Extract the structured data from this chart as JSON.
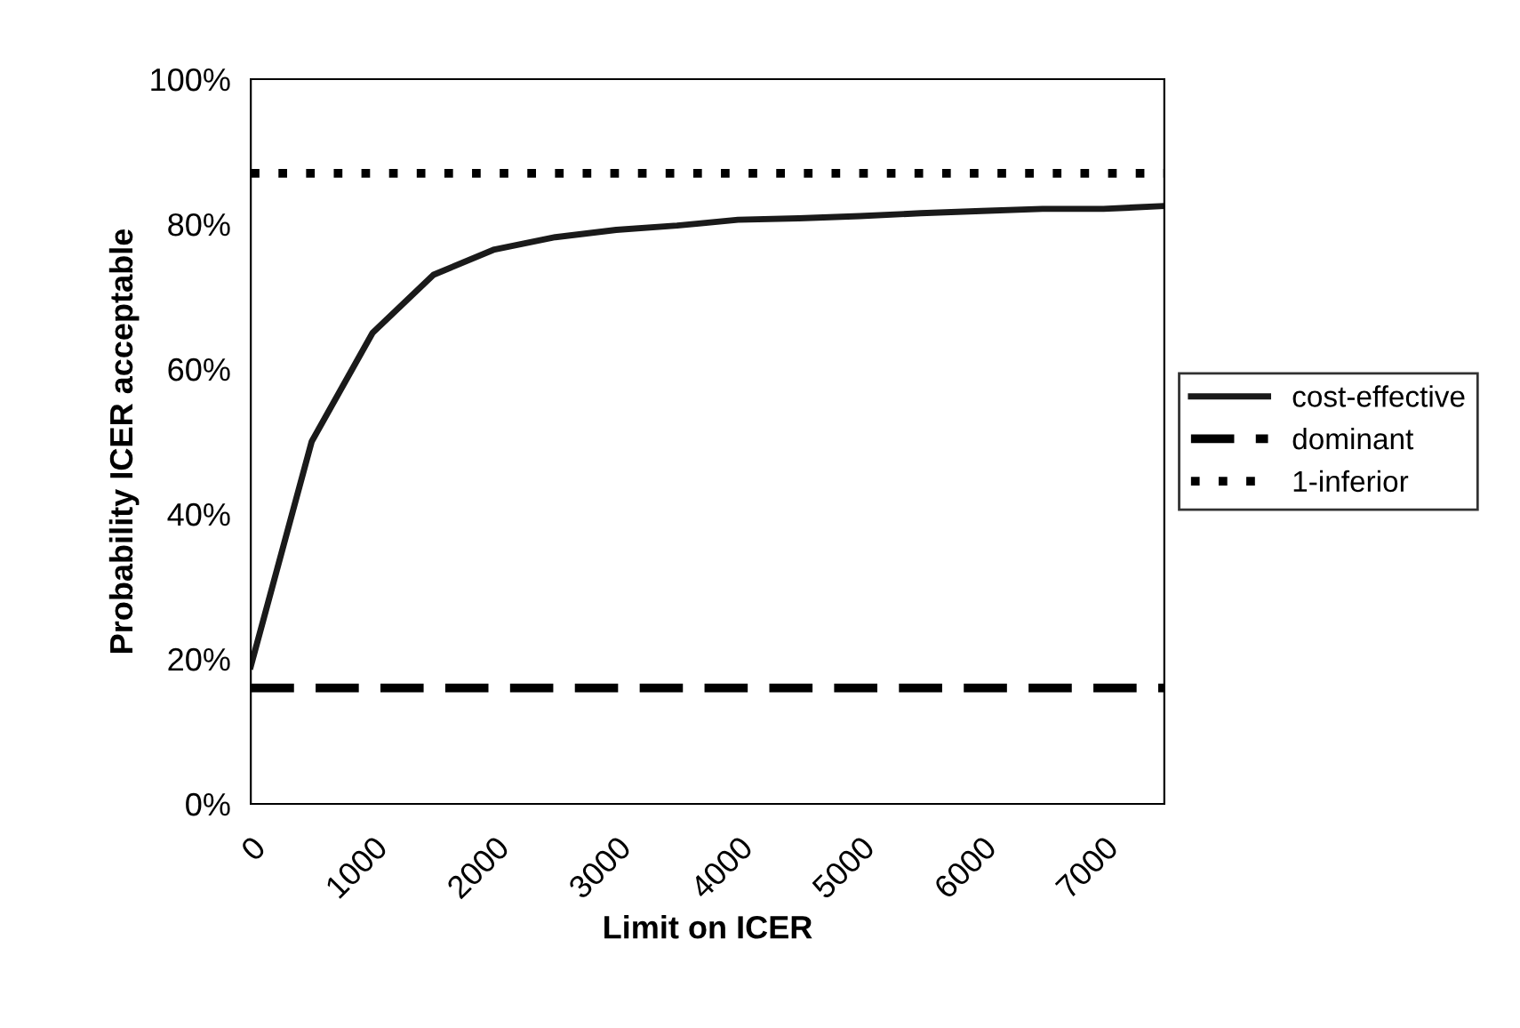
{
  "chart_data": {
    "type": "line",
    "xlabel": "Limit on ICER",
    "ylabel": "Probability ICER acceptable",
    "categories": [
      "0",
      null,
      "1000",
      null,
      "2000",
      null,
      "3000",
      null,
      "4000",
      null,
      "5000",
      null,
      "6000",
      null,
      "7000",
      null
    ],
    "series": [
      {
        "name": "cost-effective",
        "color": "#1a1a1a",
        "line_style": "solid",
        "values": [
          19,
          50,
          65,
          73,
          76.5,
          78.2,
          79.2,
          79.8,
          80.6,
          80.8,
          81.1,
          81.5,
          81.8,
          82.1,
          82.1,
          82.5
        ]
      },
      {
        "name": "dominant",
        "color": "#000000",
        "line_style": "dashed",
        "values": [
          16,
          16,
          16,
          16,
          16,
          16,
          16,
          16,
          16,
          16,
          16,
          16,
          16,
          16,
          16,
          16
        ]
      },
      {
        "name": "1-inferior",
        "color": "#000000",
        "line_style": "dotted",
        "values": [
          87,
          87,
          87,
          87,
          87,
          87,
          87,
          87,
          87,
          87,
          87,
          87,
          87,
          87,
          87,
          87
        ]
      }
    ],
    "ylim": [
      0,
      100
    ],
    "yticks": [
      {
        "value": 0,
        "label": "0%"
      },
      {
        "value": 20,
        "label": "20%"
      },
      {
        "value": 40,
        "label": "40%"
      },
      {
        "value": 60,
        "label": "60%"
      },
      {
        "value": 80,
        "label": "80%"
      },
      {
        "value": 100,
        "label": "100%"
      }
    ],
    "grid": false,
    "legend": "right",
    "marker": "none"
  }
}
